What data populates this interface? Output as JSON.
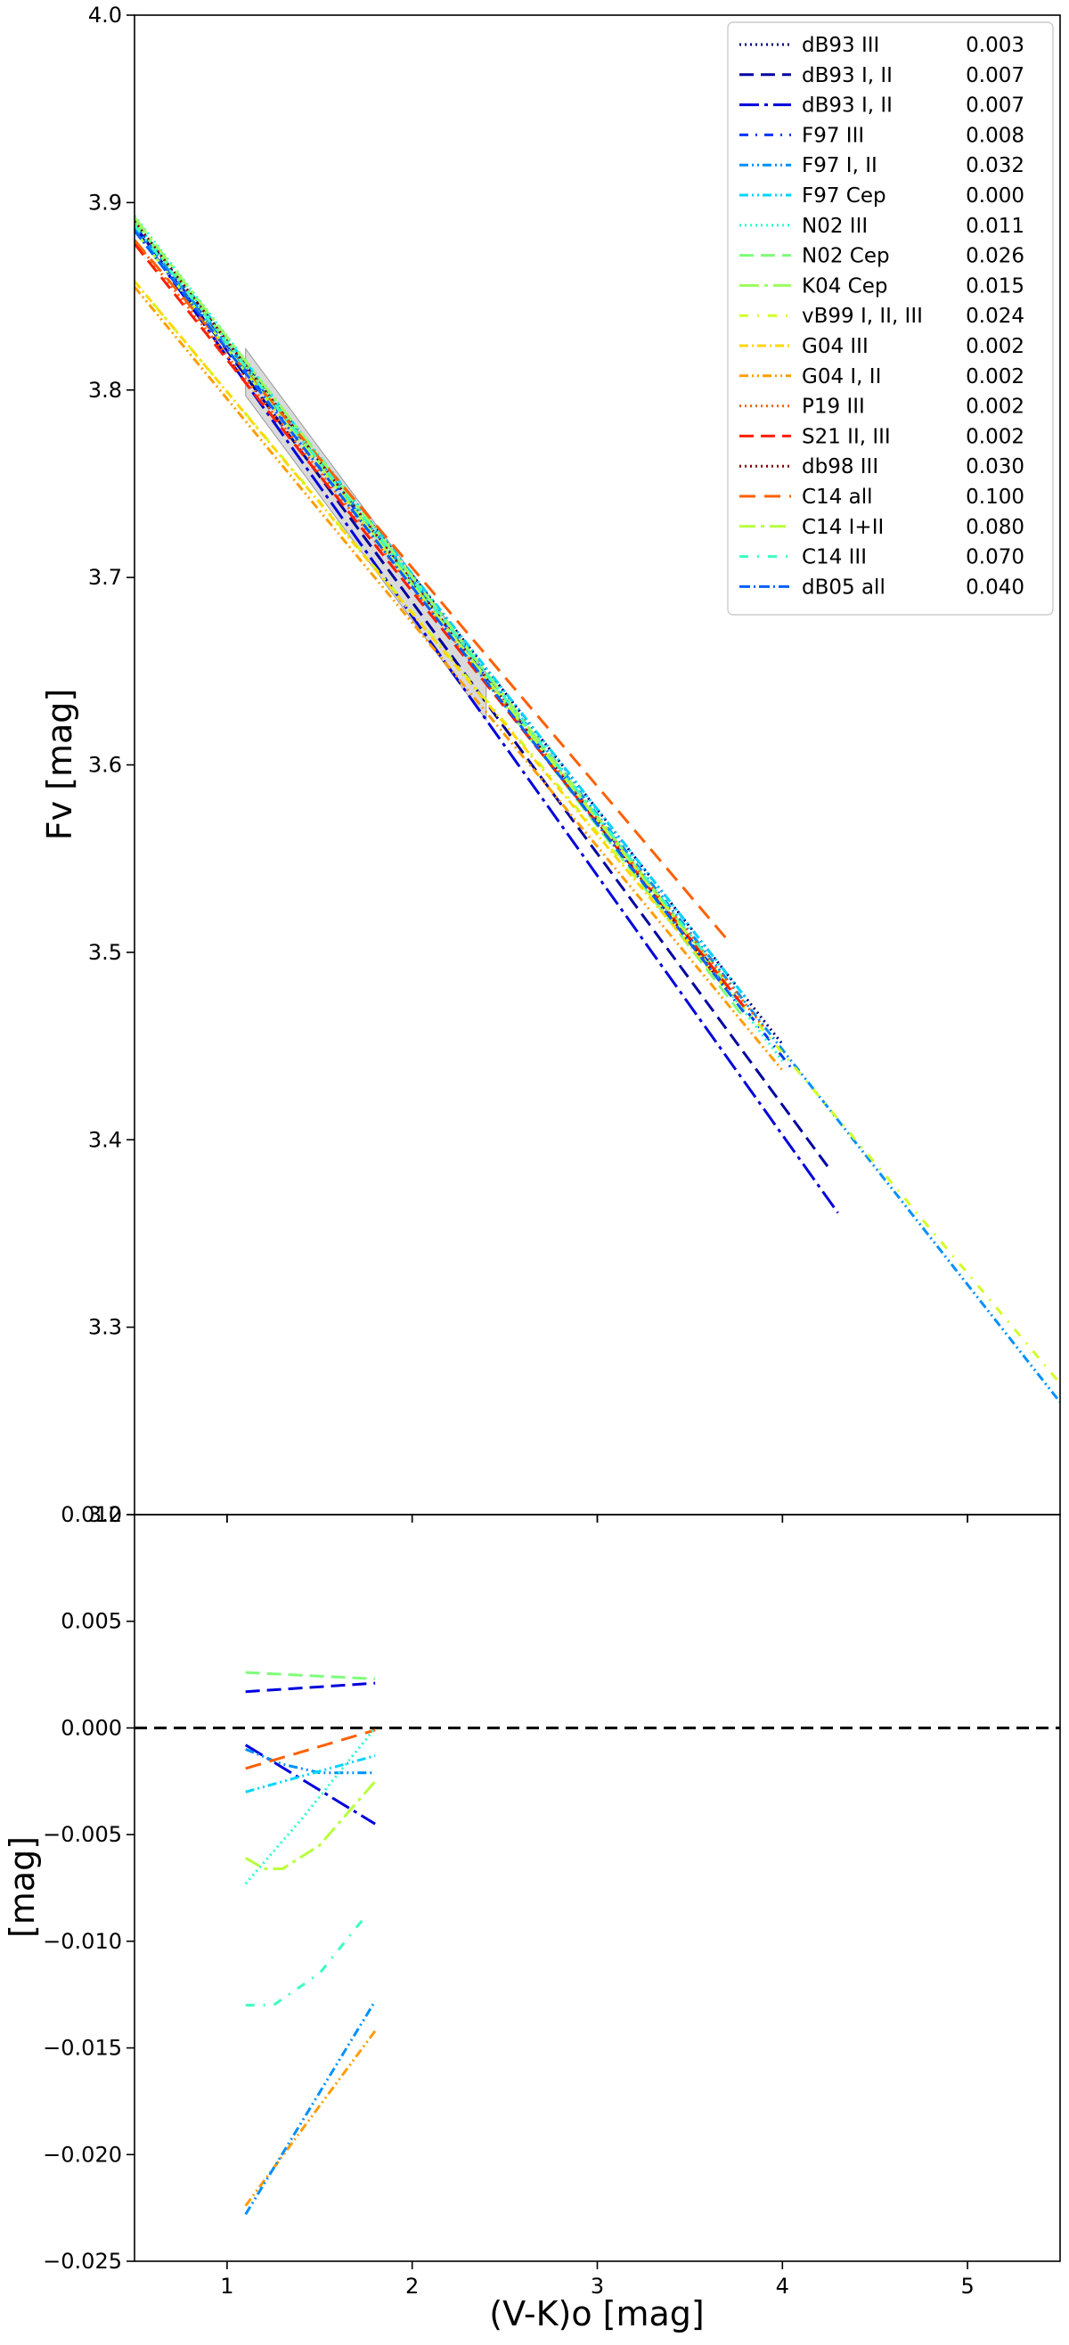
{
  "chart_data": [
    {
      "type": "line",
      "panel": "top",
      "xlabel": "",
      "ylabel": "Fv [mag]",
      "xlim": [
        0.5,
        5.5
      ],
      "ylim": [
        3.2,
        4.0
      ],
      "x_ticks": [
        1,
        2,
        3,
        4,
        5
      ],
      "y_ticks": [
        3.2,
        3.3,
        3.4,
        3.5,
        3.6,
        3.7,
        3.8,
        3.9,
        4.0
      ],
      "y_tick_labels": [
        "3.2",
        "3.3",
        "3.4",
        "3.5",
        "3.6",
        "3.7",
        "3.8",
        "3.9",
        "4.0"
      ],
      "grid": false,
      "legend_position": "top-right",
      "shaded_region": {
        "vertices": [
          [
            1.1,
            3.822
          ],
          [
            2.4,
            3.649
          ],
          [
            2.4,
            3.624
          ],
          [
            1.1,
            3.797
          ]
        ],
        "color": "#bbbbbb"
      },
      "series": [
        {
          "name": "dB93 III",
          "value": "0.003",
          "color": "#00007f",
          "dash": "2,4",
          "x": [
            0.5,
            4.0
          ],
          "y": [
            3.889,
            3.451
          ]
        },
        {
          "name": "dB93 I, II",
          "value": "0.007",
          "color": "#00009f",
          "dash": "16,8",
          "x": [
            0.5,
            4.25
          ],
          "y": [
            3.888,
            3.385
          ]
        },
        {
          "name": "dB93 I, II",
          "value": "0.007",
          "color": "#0000dd",
          "dash": "22,6,4,6",
          "x": [
            0.5,
            4.3
          ],
          "y": [
            3.887,
            3.361
          ]
        },
        {
          "name": "F97  III",
          "value": "0.008",
          "color": "#0033ff",
          "dash": "10,8,2,8",
          "x": [
            0.5,
            4.05
          ],
          "y": [
            3.887,
            3.438
          ]
        },
        {
          "name": "F97  I, II",
          "value": "0.032",
          "color": "#0090ff",
          "dash": "10,4,2,4,2,4",
          "x": [
            0.5,
            5.5
          ],
          "y": [
            3.887,
            3.26
          ]
        },
        {
          "name": "F97  Cep",
          "value": "0.000",
          "color": "#00d4ff",
          "dash": "10,4,2,4,2,4",
          "x": [
            0.5,
            3.8
          ],
          "y": [
            3.89,
            3.476
          ]
        },
        {
          "name": "N02  III",
          "value": "0.011",
          "color": "#29ffce",
          "dash": "2,4",
          "x": [
            0.5,
            4.0
          ],
          "y": [
            3.893,
            3.442
          ]
        },
        {
          "name": "N02  Cep",
          "value": "0.026",
          "color": "#7dff7a",
          "dash": "16,8",
          "x": [
            0.5,
            3.8
          ],
          "y": [
            3.89,
            3.464
          ]
        },
        {
          "name": "K04  Cep",
          "value": "0.015",
          "color": "#9aff5d",
          "dash": "22,6,4,6",
          "x": [
            0.5,
            3.7
          ],
          "y": [
            3.892,
            3.483
          ]
        },
        {
          "name": "vB99 I, II, III",
          "value": "0.024",
          "color": "#d1ff26",
          "dash": "10,10,2,10",
          "x": [
            0.5,
            5.5
          ],
          "y": [
            3.858,
            3.27
          ]
        },
        {
          "name": "G04  III",
          "value": "0.002",
          "color": "#ffd800",
          "dash": "10,4,2,4",
          "x": [
            0.5,
            3.7
          ],
          "y": [
            3.858,
            3.48
          ]
        },
        {
          "name": "G04  I, II",
          "value": "0.002",
          "color": "#ff9d00",
          "dash": "10,4,2,4,2,4",
          "x": [
            0.5,
            4.0
          ],
          "y": [
            3.855,
            3.437
          ]
        },
        {
          "name": "P19  III",
          "value": "0.002",
          "color": "#ff6000",
          "dash": "2,4",
          "x": [
            0.5,
            3.9
          ],
          "y": [
            3.88,
            3.46
          ]
        },
        {
          "name": "S21  II, III",
          "value": "0.002",
          "color": "#ff2000",
          "dash": "16,8",
          "x": [
            0.5,
            3.8
          ],
          "y": [
            3.878,
            3.47
          ]
        },
        {
          "name": "db98 III",
          "value": "0.030",
          "color": "#7f0000",
          "dash": "2,4",
          "x": [
            0.5,
            3.7
          ],
          "y": [
            3.89,
            3.48
          ]
        },
        {
          "name": "C14  all",
          "value": "0.100",
          "color": "#ff6000",
          "dash": "18,10",
          "x": [
            0.5,
            3.7
          ],
          "y": [
            3.88,
            3.507
          ]
        },
        {
          "name": "C14  I+II",
          "value": "0.080",
          "color": "#b8ff3b",
          "dash": "18,6,4,6",
          "x": [
            0.5,
            3.5
          ],
          "y": [
            3.885,
            3.508
          ]
        },
        {
          "name": "C14  III",
          "value": "0.070",
          "color": "#3bffc1",
          "dash": "10,10,2,10",
          "x": [
            0.5,
            3.6
          ],
          "y": [
            3.888,
            3.497
          ]
        },
        {
          "name": "dB05 all",
          "value": "0.040",
          "color": "#0060ff",
          "dash": "12,4,2,4",
          "x": [
            0.5,
            3.8
          ],
          "y": [
            3.885,
            3.467
          ]
        }
      ]
    },
    {
      "type": "line",
      "panel": "bottom",
      "xlabel": "(V-K)o [mag]",
      "ylabel": "[mag]",
      "xlim": [
        0.5,
        5.5
      ],
      "ylim": [
        -0.025,
        0.01
      ],
      "x_ticks": [
        1,
        2,
        3,
        4,
        5
      ],
      "x_tick_labels": [
        "1",
        "2",
        "3",
        "4",
        "5"
      ],
      "y_ticks": [
        -0.025,
        -0.02,
        -0.015,
        -0.01,
        -0.005,
        0.0,
        0.005,
        0.01
      ],
      "y_tick_labels": [
        "−0.025",
        "−0.020",
        "−0.015",
        "−0.010",
        "−0.005",
        "0.000",
        "0.005",
        "0.010"
      ],
      "grid": false,
      "reference_line": {
        "y": 0.0,
        "color": "#000000",
        "dash": "14,8"
      },
      "series": [
        {
          "color": "#0000dd",
          "dash": "16,8",
          "x": [
            1.1,
            1.8
          ],
          "y": [
            0.0017,
            0.0021
          ]
        },
        {
          "color": "#7dff7a",
          "dash": "16,8",
          "x": [
            1.1,
            1.8
          ],
          "y": [
            0.0026,
            0.0023
          ]
        },
        {
          "color": "#0000dd",
          "dash": "22,6,4,6",
          "x": [
            1.1,
            1.8
          ],
          "y": [
            -0.0008,
            -0.0045
          ]
        },
        {
          "color": "#0090ff",
          "dash": "10,4,2,4,2,4",
          "x": [
            1.1,
            1.3,
            1.5,
            1.8
          ],
          "y": [
            -0.001,
            -0.0017,
            -0.0021,
            -0.0021
          ]
        },
        {
          "color": "#00d4ff",
          "dash": "10,4,2,4,2,4",
          "x": [
            1.1,
            1.8
          ],
          "y": [
            -0.003,
            -0.0013
          ]
        },
        {
          "color": "#ff6000",
          "dash": "18,10",
          "x": [
            1.1,
            1.8
          ],
          "y": [
            -0.0019,
            -0.0001
          ]
        },
        {
          "color": "#29ffce",
          "dash": "2,4",
          "x": [
            1.1,
            1.4,
            1.8
          ],
          "y": [
            -0.0073,
            -0.0043,
            0.0
          ]
        },
        {
          "color": "#b8ff3b",
          "dash": "18,6,4,6",
          "x": [
            1.1,
            1.2,
            1.3,
            1.5,
            1.8
          ],
          "y": [
            -0.0061,
            -0.0066,
            -0.0066,
            -0.0055,
            -0.0025
          ]
        },
        {
          "color": "#3bffc1",
          "dash": "10,10,2,10",
          "x": [
            1.1,
            1.25,
            1.5,
            1.75
          ],
          "y": [
            -0.013,
            -0.013,
            -0.0115,
            -0.0088
          ]
        },
        {
          "color": "#ff9d00",
          "dash": "10,4,2,4,2,4",
          "x": [
            1.1,
            1.8
          ],
          "y": [
            -0.0224,
            -0.0142
          ]
        },
        {
          "color": "#0090ff",
          "dash": "10,4,2,4,2,4",
          "x": [
            1.1,
            1.8
          ],
          "y": [
            -0.0228,
            -0.0128
          ]
        }
      ]
    }
  ]
}
